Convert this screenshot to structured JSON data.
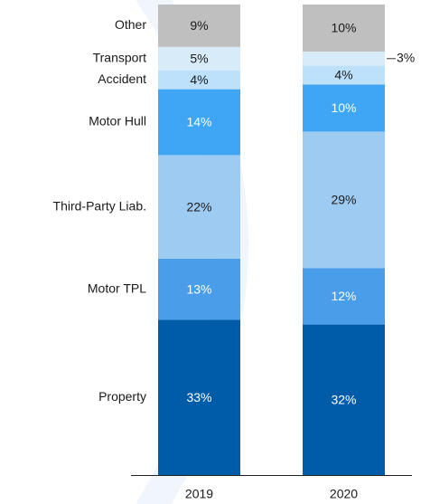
{
  "chart_data": {
    "type": "bar",
    "stacked": true,
    "categories": [
      "2019",
      "2020"
    ],
    "ylim": [
      0,
      100
    ],
    "series": [
      {
        "name": "Property",
        "color": "#005ca9",
        "values": [
          33,
          32
        ],
        "value_labels": [
          "33%",
          "32%"
        ]
      },
      {
        "name": "Motor TPL",
        "color": "#4a9de8",
        "values": [
          13,
          12
        ],
        "value_labels": [
          "13%",
          "12%"
        ]
      },
      {
        "name": "Third-Party Liab.",
        "color": "#9ecbf2",
        "values": [
          22,
          29
        ],
        "value_labels": [
          "22%",
          "29%"
        ]
      },
      {
        "name": "Motor Hull",
        "color": "#3fa6f5",
        "values": [
          14,
          10
        ],
        "value_labels": [
          "14%",
          "10%"
        ]
      },
      {
        "name": "Accident",
        "color": "#bde0fb",
        "values": [
          4,
          4
        ],
        "value_labels": [
          "4%",
          "4%"
        ]
      },
      {
        "name": "Transport",
        "color": "#d8ebf9",
        "values": [
          5,
          3
        ],
        "value_labels": [
          "5%",
          "3%"
        ]
      },
      {
        "name": "Other",
        "color": "#bfbfbf",
        "values": [
          9,
          10
        ],
        "value_labels": [
          "9%",
          "10%"
        ]
      }
    ]
  }
}
